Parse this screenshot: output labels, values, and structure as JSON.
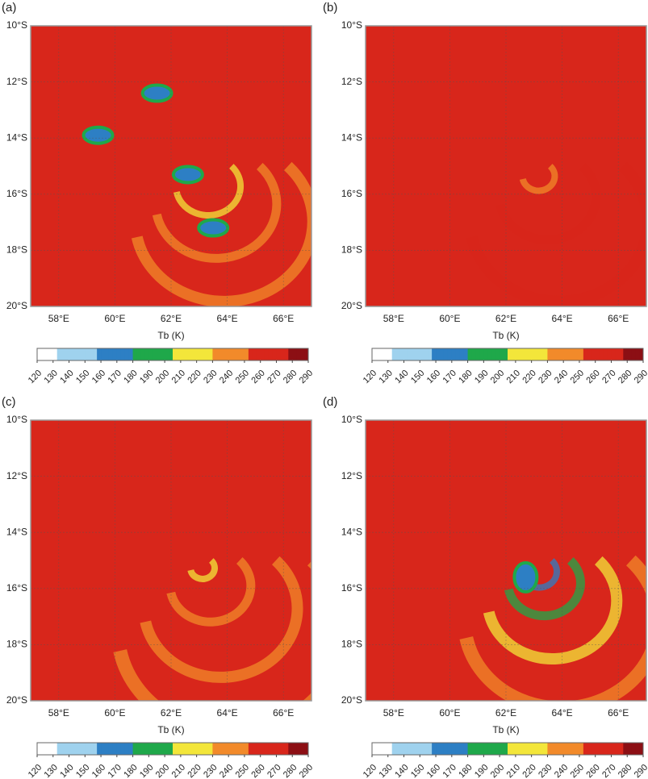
{
  "chart_data": [
    {
      "type": "heatmap",
      "panel": "(a)",
      "xlabel": "Tb (K)",
      "xlim": [
        57,
        67
      ],
      "ylim": [
        -20,
        -10
      ],
      "xticks": [
        {
          "value": 58,
          "label": "58°E"
        },
        {
          "value": 60,
          "label": "60°E"
        },
        {
          "value": 62,
          "label": "62°E"
        },
        {
          "value": 64,
          "label": "64°E"
        },
        {
          "value": 66,
          "label": "66°E"
        }
      ],
      "yticks": [
        {
          "value": -10,
          "label": "10°S"
        },
        {
          "value": -12,
          "label": "12°S"
        },
        {
          "value": -14,
          "label": "14°S"
        },
        {
          "value": -16,
          "label": "16°S"
        },
        {
          "value": -18,
          "label": "18°S"
        },
        {
          "value": -20,
          "label": "20°S"
        }
      ],
      "clim": [
        120,
        290
      ],
      "cticks": [
        120,
        130,
        140,
        150,
        160,
        170,
        180,
        190,
        200,
        210,
        220,
        230,
        240,
        250,
        260,
        270,
        280,
        290
      ],
      "colormap": [
        "#ffffff",
        "#9fd2ee",
        "#2d7fc4",
        "#1fa84a",
        "#f3e63a",
        "#f28a2a",
        "#d8261b",
        "#8c0f14"
      ]
    },
    {
      "type": "heatmap",
      "panel": "(b)",
      "xlabel": "Tb (K)",
      "xlim": [
        57,
        67
      ],
      "ylim": [
        -20,
        -10
      ],
      "xticks": [
        {
          "value": 58,
          "label": "58°E"
        },
        {
          "value": 60,
          "label": "60°E"
        },
        {
          "value": 62,
          "label": "62°E"
        },
        {
          "value": 64,
          "label": "64°E"
        },
        {
          "value": 66,
          "label": "66°E"
        }
      ],
      "yticks": [
        {
          "value": -10,
          "label": "10°S"
        },
        {
          "value": -12,
          "label": "12°S"
        },
        {
          "value": -14,
          "label": "14°S"
        },
        {
          "value": -16,
          "label": "16°S"
        },
        {
          "value": -18,
          "label": "18°S"
        },
        {
          "value": -20,
          "label": "20°S"
        }
      ],
      "clim": [
        120,
        290
      ],
      "cticks": [
        120,
        130,
        140,
        150,
        160,
        170,
        180,
        190,
        200,
        210,
        220,
        230,
        240,
        250,
        260,
        270,
        280,
        290
      ],
      "colormap": [
        "#ffffff",
        "#9fd2ee",
        "#2d7fc4",
        "#1fa84a",
        "#f3e63a",
        "#f28a2a",
        "#d8261b",
        "#8c0f14"
      ]
    },
    {
      "type": "heatmap",
      "panel": "(c)",
      "xlabel": "Tb (K)",
      "xlim": [
        57,
        67
      ],
      "ylim": [
        -20,
        -10
      ],
      "xticks": [
        {
          "value": 58,
          "label": "58°E"
        },
        {
          "value": 60,
          "label": "60°E"
        },
        {
          "value": 62,
          "label": "62°E"
        },
        {
          "value": 64,
          "label": "64°E"
        },
        {
          "value": 66,
          "label": "66°E"
        }
      ],
      "yticks": [
        {
          "value": -10,
          "label": "10°S"
        },
        {
          "value": -12,
          "label": "12°S"
        },
        {
          "value": -14,
          "label": "14°S"
        },
        {
          "value": -16,
          "label": "16°S"
        },
        {
          "value": -18,
          "label": "18°S"
        },
        {
          "value": -20,
          "label": "20°S"
        }
      ],
      "clim": [
        120,
        290
      ],
      "cticks": [
        120,
        130,
        140,
        150,
        160,
        170,
        180,
        190,
        200,
        210,
        220,
        230,
        240,
        250,
        260,
        270,
        280,
        290
      ],
      "colormap": [
        "#ffffff",
        "#9fd2ee",
        "#2d7fc4",
        "#1fa84a",
        "#f3e63a",
        "#f28a2a",
        "#d8261b",
        "#8c0f14"
      ]
    },
    {
      "type": "heatmap",
      "panel": "(d)",
      "xlabel": "Tb (K)",
      "xlim": [
        57,
        67
      ],
      "ylim": [
        -20,
        -10
      ],
      "xticks": [
        {
          "value": 58,
          "label": "58°E"
        },
        {
          "value": 60,
          "label": "60°E"
        },
        {
          "value": 62,
          "label": "62°E"
        },
        {
          "value": 64,
          "label": "64°E"
        },
        {
          "value": 66,
          "label": "66°E"
        }
      ],
      "yticks": [
        {
          "value": -10,
          "label": "10°S"
        },
        {
          "value": -12,
          "label": "12°S"
        },
        {
          "value": -14,
          "label": "14°S"
        },
        {
          "value": -16,
          "label": "16°S"
        },
        {
          "value": -18,
          "label": "18°S"
        },
        {
          "value": -20,
          "label": "20°S"
        }
      ],
      "clim": [
        120,
        290
      ],
      "cticks": [
        120,
        130,
        140,
        150,
        160,
        170,
        180,
        190,
        200,
        210,
        220,
        230,
        240,
        250,
        260,
        270,
        280,
        290
      ],
      "colormap": [
        "#ffffff",
        "#9fd2ee",
        "#2d7fc4",
        "#1fa84a",
        "#f3e63a",
        "#f28a2a",
        "#d8261b",
        "#8c0f14"
      ]
    }
  ]
}
